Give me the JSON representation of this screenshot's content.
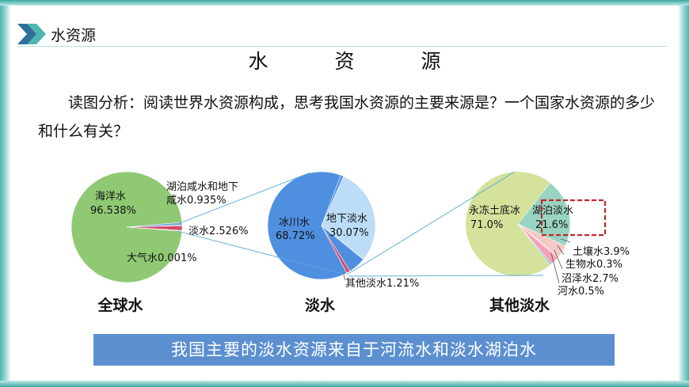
{
  "header": {
    "title": "水资源"
  },
  "page_title": "水 资 源",
  "question": "读图分析：阅读世界水资源构成，思考我国水资源的主要来源是？一个国家水资源的多少和什么有关？",
  "conclusion": "我国主要的淡水资源来自于河流水和淡水湖泊水",
  "colors": {
    "banner": "#5b8fd0",
    "ocean": "#8fc973",
    "glacier": "#4f8fe0",
    "groundwater": "#bcdcf7",
    "permafrost": "#d4e29c",
    "lake_fresh": "#99d4c2",
    "highlight_box": "#c0282e"
  },
  "chart_data": [
    {
      "type": "pie",
      "title": "全球水",
      "slices": [
        {
          "name": "海洋水",
          "value": 96.538,
          "label": "96.538%"
        },
        {
          "name": "湖泊咸水和地下咸水",
          "value": 0.935,
          "label": "0.935%"
        },
        {
          "name": "淡水",
          "value": 2.526,
          "label": "2.526%"
        },
        {
          "name": "大气水",
          "value": 0.001,
          "label": "0.001%"
        }
      ]
    },
    {
      "type": "pie",
      "title": "淡水",
      "slices": [
        {
          "name": "冰川水",
          "value": 68.72,
          "label": "68.72%"
        },
        {
          "name": "地下淡水",
          "value": 30.07,
          "label": "30.07%"
        },
        {
          "name": "其他淡水",
          "value": 1.21,
          "label": "1.21%"
        }
      ]
    },
    {
      "type": "pie",
      "title": "其他淡水",
      "slices": [
        {
          "name": "永冻土底冰",
          "value": 71.0,
          "label": "71.0%"
        },
        {
          "name": "湖泊淡水",
          "value": 21.6,
          "label": "21.6%"
        },
        {
          "name": "土壤水",
          "value": 3.9,
          "label": "3.9%"
        },
        {
          "name": "生物水",
          "value": 0.3,
          "label": "0.3%"
        },
        {
          "name": "沼泽水",
          "value": 2.7,
          "label": "2.7%"
        },
        {
          "name": "河水",
          "value": 0.5,
          "label": "0.5%"
        }
      ]
    }
  ]
}
